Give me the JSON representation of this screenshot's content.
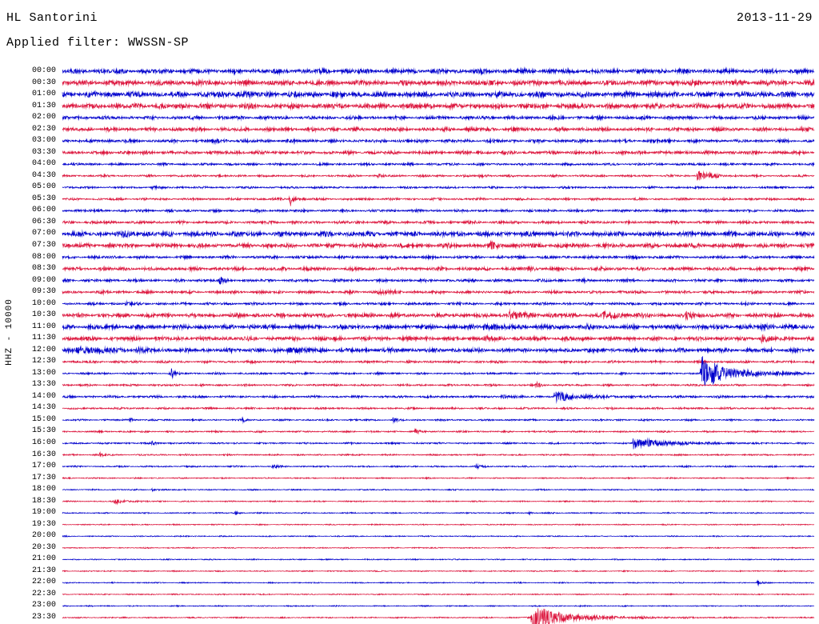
{
  "header": {
    "station": "HL Santorini",
    "date": "2013-11-29",
    "filter_label": "Applied filter: WWSSN-SP"
  },
  "y_axis_label": "HHZ - 10000",
  "colors": {
    "blue": "#0000cd",
    "red": "#dc143c",
    "background": "#ffffff",
    "text": "#000000"
  },
  "chart_data": {
    "type": "line",
    "subtype": "helicorder-dayplot",
    "title": "HL Santorini 2013-11-29 HHZ (filter WWSSN-SP)",
    "row_duration_minutes": 30,
    "start_time": "00:00",
    "end_time": "23:30",
    "num_rows": 48,
    "amplitude_scale_label": "HHZ - 10000",
    "rows": [
      {
        "time": "00:00",
        "color": "blue",
        "noise": 3.2,
        "events": []
      },
      {
        "time": "00:30",
        "color": "red",
        "noise": 3.6,
        "events": []
      },
      {
        "time": "01:00",
        "color": "blue",
        "noise": 3.8,
        "events": [
          {
            "x": 0.23,
            "amp": 2,
            "decay": 0.02
          }
        ]
      },
      {
        "time": "01:30",
        "color": "red",
        "noise": 3.6,
        "events": []
      },
      {
        "time": "02:00",
        "color": "blue",
        "noise": 2.4,
        "events": []
      },
      {
        "time": "02:30",
        "color": "red",
        "noise": 2.6,
        "events": []
      },
      {
        "time": "03:00",
        "color": "blue",
        "noise": 2.2,
        "events": [
          {
            "x": 0.2,
            "amp": 1.5,
            "decay": 0.01
          }
        ]
      },
      {
        "time": "03:30",
        "color": "red",
        "noise": 2.4,
        "events": []
      },
      {
        "time": "04:00",
        "color": "blue",
        "noise": 1.7,
        "events": []
      },
      {
        "time": "04:30",
        "color": "red",
        "noise": 1.5,
        "events": [
          {
            "x": 0.42,
            "amp": 1.5,
            "decay": 0.006
          },
          {
            "x": 0.555,
            "amp": 1.5,
            "decay": 0.006
          },
          {
            "x": 0.845,
            "amp": 7,
            "decay": 0.012
          }
        ]
      },
      {
        "time": "05:00",
        "color": "blue",
        "noise": 1.5,
        "events": [
          {
            "x": 0.12,
            "amp": 1.5,
            "decay": 0.005
          }
        ]
      },
      {
        "time": "05:30",
        "color": "red",
        "noise": 1.6,
        "events": [
          {
            "x": 0.303,
            "amp": 11,
            "decay": 0.003
          }
        ]
      },
      {
        "time": "06:00",
        "color": "blue",
        "noise": 1.8,
        "events": []
      },
      {
        "time": "06:30",
        "color": "red",
        "noise": 2.0,
        "events": []
      },
      {
        "time": "07:00",
        "color": "blue",
        "noise": 3.4,
        "events": [
          {
            "x": 0.08,
            "amp": 2,
            "decay": 0.01
          }
        ]
      },
      {
        "time": "07:30",
        "color": "red",
        "noise": 3.0,
        "events": [
          {
            "x": 0.57,
            "amp": 3,
            "decay": 0.01
          }
        ]
      },
      {
        "time": "08:00",
        "color": "blue",
        "noise": 2.0,
        "events": []
      },
      {
        "time": "08:30",
        "color": "red",
        "noise": 2.4,
        "events": [
          {
            "x": 0.62,
            "amp": 2,
            "decay": 0.01
          }
        ]
      },
      {
        "time": "09:00",
        "color": "blue",
        "noise": 2.0,
        "events": [
          {
            "x": 0.21,
            "amp": 4,
            "decay": 0.004
          }
        ]
      },
      {
        "time": "09:30",
        "color": "red",
        "noise": 2.0,
        "events": [
          {
            "x": 0.42,
            "amp": 2.5,
            "decay": 0.015
          }
        ]
      },
      {
        "time": "10:00",
        "color": "blue",
        "noise": 1.8,
        "events": [
          {
            "x": 0.085,
            "amp": 2.5,
            "decay": 0.004
          }
        ]
      },
      {
        "time": "10:30",
        "color": "red",
        "noise": 2.8,
        "events": [
          {
            "x": 0.595,
            "amp": 4,
            "decay": 0.02
          },
          {
            "x": 0.72,
            "amp": 3.5,
            "decay": 0.02
          },
          {
            "x": 0.83,
            "amp": 3,
            "decay": 0.012
          }
        ]
      },
      {
        "time": "11:00",
        "color": "blue",
        "noise": 3.2,
        "events": [
          {
            "x": 0.56,
            "amp": 3,
            "decay": 0.02
          },
          {
            "x": 0.93,
            "amp": 3,
            "decay": 0.012
          }
        ]
      },
      {
        "time": "11:30",
        "color": "red",
        "noise": 2.8,
        "events": [
          {
            "x": 0.56,
            "amp": 2.5,
            "decay": 0.015
          },
          {
            "x": 0.93,
            "amp": 4,
            "decay": 0.008
          }
        ]
      },
      {
        "time": "12:00",
        "color": "blue",
        "noise": 2.8,
        "events": [
          {
            "x": 0.02,
            "amp": 3,
            "decay": 0.04
          },
          {
            "x": 0.1,
            "amp": 2,
            "decay": 0.01
          },
          {
            "x": 0.3,
            "amp": 2.5,
            "decay": 0.02
          }
        ]
      },
      {
        "time": "12:30",
        "color": "red",
        "noise": 1.7,
        "events": []
      },
      {
        "time": "13:00",
        "color": "blue",
        "noise": 1.4,
        "events": [
          {
            "x": 0.145,
            "amp": 5,
            "decay": 0.004
          },
          {
            "x": 0.85,
            "amp": 24,
            "decay": 0.012
          },
          {
            "x": 0.865,
            "amp": 7,
            "decay": 0.05
          }
        ]
      },
      {
        "time": "13:30",
        "color": "red",
        "noise": 1.4,
        "events": [
          {
            "x": 0.63,
            "amp": 3.5,
            "decay": 0.005
          }
        ]
      },
      {
        "time": "14:00",
        "color": "blue",
        "noise": 1.6,
        "events": [
          {
            "x": 0.585,
            "amp": 2.5,
            "decay": 0.006
          },
          {
            "x": 0.655,
            "amp": 7,
            "decay": 0.008
          },
          {
            "x": 0.665,
            "amp": 2.5,
            "decay": 0.04
          }
        ]
      },
      {
        "time": "14:30",
        "color": "red",
        "noise": 1.4,
        "events": []
      },
      {
        "time": "15:00",
        "color": "blue",
        "noise": 1.2,
        "events": [
          {
            "x": 0.09,
            "amp": 2.5,
            "decay": 0.004
          },
          {
            "x": 0.24,
            "amp": 2.5,
            "decay": 0.004
          },
          {
            "x": 0.44,
            "amp": 2.5,
            "decay": 0.004
          }
        ]
      },
      {
        "time": "15:30",
        "color": "red",
        "noise": 1.2,
        "events": [
          {
            "x": 0.47,
            "amp": 3.5,
            "decay": 0.004
          }
        ]
      },
      {
        "time": "16:00",
        "color": "blue",
        "noise": 1.2,
        "events": [
          {
            "x": 0.12,
            "amp": 2.5,
            "decay": 0.004
          },
          {
            "x": 0.76,
            "amp": 9,
            "decay": 0.01
          },
          {
            "x": 0.775,
            "amp": 3,
            "decay": 0.05
          }
        ]
      },
      {
        "time": "16:30",
        "color": "red",
        "noise": 1.1,
        "events": [
          {
            "x": 0.05,
            "amp": 2,
            "decay": 0.005
          }
        ]
      },
      {
        "time": "17:00",
        "color": "blue",
        "noise": 1.1,
        "events": [
          {
            "x": 0.28,
            "amp": 2.5,
            "decay": 0.005
          },
          {
            "x": 0.55,
            "amp": 2,
            "decay": 0.005
          }
        ]
      },
      {
        "time": "17:30",
        "color": "red",
        "noise": 0.9,
        "events": []
      },
      {
        "time": "18:00",
        "color": "blue",
        "noise": 0.9,
        "events": [
          {
            "x": 0.12,
            "amp": 2,
            "decay": 0.004
          }
        ]
      },
      {
        "time": "18:30",
        "color": "red",
        "noise": 0.9,
        "events": [
          {
            "x": 0.07,
            "amp": 2.5,
            "decay": 0.015
          }
        ]
      },
      {
        "time": "19:00",
        "color": "blue",
        "noise": 0.9,
        "events": [
          {
            "x": 0.23,
            "amp": 2,
            "decay": 0.004
          },
          {
            "x": 0.62,
            "amp": 1.5,
            "decay": 0.004
          }
        ]
      },
      {
        "time": "19:30",
        "color": "red",
        "noise": 0.8,
        "events": []
      },
      {
        "time": "20:00",
        "color": "blue",
        "noise": 0.8,
        "events": []
      },
      {
        "time": "20:30",
        "color": "red",
        "noise": 0.8,
        "events": []
      },
      {
        "time": "21:00",
        "color": "blue",
        "noise": 0.8,
        "events": []
      },
      {
        "time": "21:30",
        "color": "red",
        "noise": 0.8,
        "events": []
      },
      {
        "time": "22:00",
        "color": "blue",
        "noise": 0.8,
        "events": [
          {
            "x": 0.925,
            "amp": 3,
            "decay": 0.004
          }
        ]
      },
      {
        "time": "22:30",
        "color": "red",
        "noise": 0.8,
        "events": []
      },
      {
        "time": "23:00",
        "color": "blue",
        "noise": 0.8,
        "events": []
      },
      {
        "time": "23:30",
        "color": "red",
        "noise": 0.9,
        "events": [
          {
            "x": 0.625,
            "amp": 22,
            "decay": 0.012
          },
          {
            "x": 0.64,
            "amp": 6,
            "decay": 0.06
          }
        ]
      }
    ]
  }
}
